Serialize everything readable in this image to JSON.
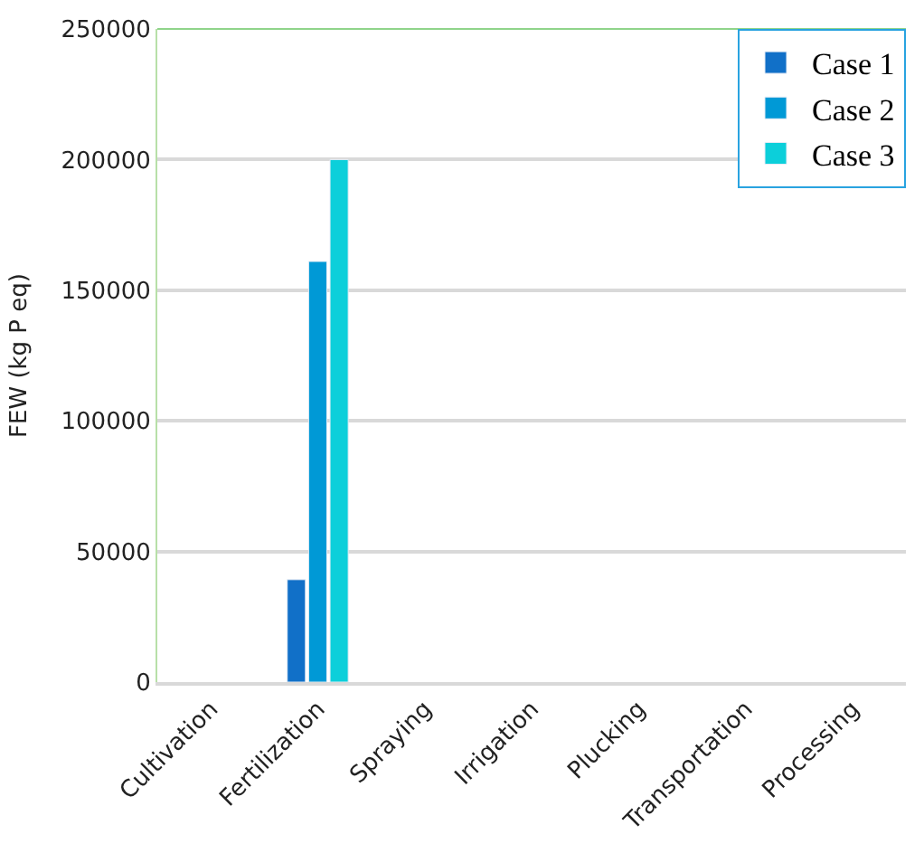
{
  "chart_data": {
    "type": "bar",
    "ylabel": "FEW (kg P eq)",
    "categories": [
      "Cultivation",
      "Fertilization",
      "Spraying",
      "Irrigation",
      "Plucking",
      "Transportation",
      "Processing"
    ],
    "series": [
      {
        "name": "Case 1",
        "color": "#1170c8",
        "values": [
          null,
          39200,
          null,
          null,
          null,
          null,
          null
        ]
      },
      {
        "name": "Case 2",
        "color": "#0099d6",
        "values": [
          null,
          161000,
          null,
          null,
          null,
          null,
          null
        ]
      },
      {
        "name": "Case 3",
        "color": "#0ccfda",
        "values": [
          null,
          200000,
          null,
          null,
          null,
          null,
          null
        ]
      }
    ],
    "ylim": [
      0,
      250000
    ],
    "yticks": [
      0,
      50000,
      100000,
      150000,
      200000,
      250000
    ],
    "grid": "y",
    "legend": "top right"
  }
}
